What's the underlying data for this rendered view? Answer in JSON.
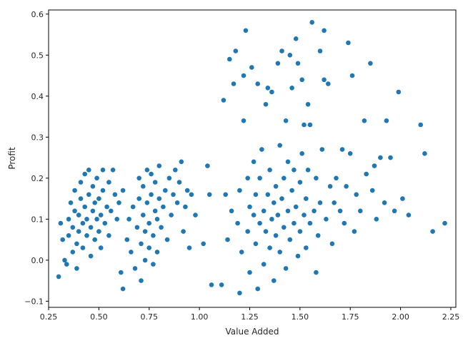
{
  "colors": {
    "marker": "#1f77b4",
    "axis": "#000000",
    "text": "#262626",
    "background": "#ffffff"
  },
  "chart_data": {
    "type": "scatter",
    "xlabel": "Value Added",
    "ylabel": "Profit",
    "xlim": [
      0.25,
      2.275
    ],
    "ylim": [
      -0.115,
      0.61
    ],
    "xticks": [
      0.25,
      0.5,
      0.75,
      1.0,
      1.25,
      1.5,
      1.75,
      2.0,
      2.25
    ],
    "xtick_labels": [
      "0.25",
      "0.50",
      "0.75",
      "1.00",
      "1.25",
      "1.50",
      "1.75",
      "2.00",
      "2.25"
    ],
    "yticks": [
      -0.1,
      0.0,
      0.1,
      0.2,
      0.3,
      0.4,
      0.5,
      0.6
    ],
    "ytick_labels": [
      "−0.1",
      "0.0",
      "0.1",
      "0.2",
      "0.3",
      "0.4",
      "0.5",
      "0.6"
    ],
    "grid": false,
    "points": [
      [
        0.3,
        -0.04
      ],
      [
        0.31,
        0.09
      ],
      [
        0.32,
        0.05
      ],
      [
        0.33,
        0.0
      ],
      [
        0.34,
        -0.01
      ],
      [
        0.35,
        0.06
      ],
      [
        0.35,
        0.1
      ],
      [
        0.36,
        0.14
      ],
      [
        0.37,
        0.02
      ],
      [
        0.37,
        0.08
      ],
      [
        0.38,
        0.12
      ],
      [
        0.38,
        0.17
      ],
      [
        0.39,
        -0.02
      ],
      [
        0.39,
        0.04
      ],
      [
        0.4,
        0.11
      ],
      [
        0.4,
        0.07
      ],
      [
        0.41,
        0.15
      ],
      [
        0.41,
        0.19
      ],
      [
        0.42,
        0.03
      ],
      [
        0.42,
        0.09
      ],
      [
        0.43,
        0.13
      ],
      [
        0.43,
        0.21
      ],
      [
        0.44,
        0.06
      ],
      [
        0.44,
        0.1
      ],
      [
        0.45,
        0.16
      ],
      [
        0.45,
        0.22
      ],
      [
        0.46,
        0.01
      ],
      [
        0.46,
        0.08
      ],
      [
        0.47,
        0.12
      ],
      [
        0.47,
        0.18
      ],
      [
        0.48,
        0.05
      ],
      [
        0.48,
        0.14
      ],
      [
        0.49,
        0.1
      ],
      [
        0.49,
        0.2
      ],
      [
        0.5,
        0.07
      ],
      [
        0.5,
        0.15
      ],
      [
        0.51,
        0.03
      ],
      [
        0.51,
        0.11
      ],
      [
        0.52,
        0.17
      ],
      [
        0.52,
        0.22
      ],
      [
        0.53,
        0.09
      ],
      [
        0.54,
        0.13
      ],
      [
        0.55,
        0.06
      ],
      [
        0.55,
        0.19
      ],
      [
        0.56,
        0.12
      ],
      [
        0.57,
        0.22
      ],
      [
        0.58,
        0.16
      ],
      [
        0.59,
        0.1
      ],
      [
        0.6,
        0.14
      ],
      [
        0.61,
        -0.03
      ],
      [
        0.62,
        0.17
      ],
      [
        0.62,
        -0.07
      ],
      [
        0.64,
        0.05
      ],
      [
        0.65,
        0.1
      ],
      [
        0.66,
        0.02
      ],
      [
        0.67,
        0.13
      ],
      [
        0.68,
        -0.02
      ],
      [
        0.69,
        0.08
      ],
      [
        0.7,
        0.15
      ],
      [
        0.7,
        0.2
      ],
      [
        0.71,
        0.04
      ],
      [
        0.71,
        -0.05
      ],
      [
        0.72,
        0.11
      ],
      [
        0.72,
        0.18
      ],
      [
        0.73,
        0.0
      ],
      [
        0.73,
        0.07
      ],
      [
        0.74,
        0.14
      ],
      [
        0.74,
        0.22
      ],
      [
        0.75,
        0.03
      ],
      [
        0.75,
        0.09
      ],
      [
        0.76,
        0.16
      ],
      [
        0.76,
        0.21
      ],
      [
        0.77,
        -0.01
      ],
      [
        0.77,
        0.06
      ],
      [
        0.78,
        0.12
      ],
      [
        0.78,
        0.19
      ],
      [
        0.79,
        0.02
      ],
      [
        0.79,
        0.1
      ],
      [
        0.8,
        0.15
      ],
      [
        0.8,
        0.23
      ],
      [
        0.81,
        0.08
      ],
      [
        0.82,
        0.13
      ],
      [
        0.83,
        0.17
      ],
      [
        0.84,
        0.05
      ],
      [
        0.85,
        0.2
      ],
      [
        0.86,
        0.11
      ],
      [
        0.87,
        0.16
      ],
      [
        0.88,
        0.22
      ],
      [
        0.89,
        0.14
      ],
      [
        0.9,
        0.19
      ],
      [
        0.91,
        0.24
      ],
      [
        0.92,
        0.07
      ],
      [
        0.93,
        0.13
      ],
      [
        0.94,
        0.17
      ],
      [
        0.95,
        0.03
      ],
      [
        0.96,
        0.16
      ],
      [
        0.98,
        0.11
      ],
      [
        1.02,
        0.04
      ],
      [
        1.04,
        0.23
      ],
      [
        1.05,
        0.16
      ],
      [
        1.06,
        -0.06
      ],
      [
        1.11,
        -0.06
      ],
      [
        1.12,
        0.39
      ],
      [
        1.13,
        0.16
      ],
      [
        1.14,
        0.05
      ],
      [
        1.15,
        0.49
      ],
      [
        1.16,
        0.12
      ],
      [
        1.17,
        0.43
      ],
      [
        1.18,
        0.51
      ],
      [
        1.19,
        0.09
      ],
      [
        1.2,
        0.17
      ],
      [
        1.2,
        -0.08
      ],
      [
        1.21,
        0.02
      ],
      [
        1.22,
        0.34
      ],
      [
        1.22,
        0.45
      ],
      [
        1.23,
        0.56
      ],
      [
        1.24,
        0.07
      ],
      [
        1.24,
        0.2
      ],
      [
        1.25,
        0.13
      ],
      [
        1.25,
        -0.03
      ],
      [
        1.26,
        0.47
      ],
      [
        1.27,
        0.11
      ],
      [
        1.27,
        0.24
      ],
      [
        1.28,
        0.04
      ],
      [
        1.28,
        0.16
      ],
      [
        1.29,
        0.43
      ],
      [
        1.29,
        -0.07
      ],
      [
        1.3,
        0.09
      ],
      [
        1.3,
        0.2
      ],
      [
        1.31,
        0.27
      ],
      [
        1.32,
        0.12
      ],
      [
        1.32,
        -0.01
      ],
      [
        1.33,
        0.38
      ],
      [
        1.33,
        0.07
      ],
      [
        1.34,
        0.16
      ],
      [
        1.34,
        0.42
      ],
      [
        1.35,
        0.03
      ],
      [
        1.35,
        0.22
      ],
      [
        1.36,
        0.1
      ],
      [
        1.36,
        0.41
      ],
      [
        1.37,
        0.14
      ],
      [
        1.37,
        -0.05
      ],
      [
        1.38,
        0.18
      ],
      [
        1.38,
        0.06
      ],
      [
        1.39,
        0.48
      ],
      [
        1.39,
        0.11
      ],
      [
        1.4,
        0.28
      ],
      [
        1.4,
        0.02
      ],
      [
        1.41,
        0.15
      ],
      [
        1.41,
        0.51
      ],
      [
        1.42,
        0.08
      ],
      [
        1.42,
        0.2
      ],
      [
        1.43,
        0.34
      ],
      [
        1.43,
        -0.02
      ],
      [
        1.44,
        0.12
      ],
      [
        1.44,
        0.24
      ],
      [
        1.45,
        0.05
      ],
      [
        1.45,
        0.5
      ],
      [
        1.46,
        0.17
      ],
      [
        1.46,
        0.42
      ],
      [
        1.47,
        0.09
      ],
      [
        1.47,
        0.22
      ],
      [
        1.48,
        0.54
      ],
      [
        1.48,
        0.13
      ],
      [
        1.49,
        0.01
      ],
      [
        1.49,
        0.48
      ],
      [
        1.5,
        0.19
      ],
      [
        1.5,
        0.07
      ],
      [
        1.51,
        0.44
      ],
      [
        1.51,
        0.26
      ],
      [
        1.52,
        0.11
      ],
      [
        1.52,
        0.33
      ],
      [
        1.53,
        0.15
      ],
      [
        1.53,
        0.03
      ],
      [
        1.54,
        0.38
      ],
      [
        1.54,
        0.22
      ],
      [
        1.55,
        0.09
      ],
      [
        1.55,
        0.33
      ],
      [
        1.56,
        0.58
      ],
      [
        1.57,
        0.12
      ],
      [
        1.58,
        0.2
      ],
      [
        1.58,
        -0.03
      ],
      [
        1.59,
        0.06
      ],
      [
        1.6,
        0.51
      ],
      [
        1.6,
        0.14
      ],
      [
        1.61,
        0.27
      ],
      [
        1.62,
        0.56
      ],
      [
        1.62,
        0.44
      ],
      [
        1.63,
        0.1
      ],
      [
        1.64,
        0.43
      ],
      [
        1.65,
        0.18
      ],
      [
        1.66,
        0.04
      ],
      [
        1.67,
        0.14
      ],
      [
        1.68,
        0.2
      ],
      [
        1.7,
        0.12
      ],
      [
        1.71,
        0.27
      ],
      [
        1.72,
        0.09
      ],
      [
        1.73,
        0.18
      ],
      [
        1.74,
        0.53
      ],
      [
        1.75,
        0.26
      ],
      [
        1.76,
        0.45
      ],
      [
        1.77,
        0.07
      ],
      [
        1.78,
        0.16
      ],
      [
        1.8,
        0.12
      ],
      [
        1.82,
        0.34
      ],
      [
        1.83,
        0.21
      ],
      [
        1.85,
        0.48
      ],
      [
        1.86,
        0.17
      ],
      [
        1.87,
        0.23
      ],
      [
        1.88,
        0.1
      ],
      [
        1.9,
        0.25
      ],
      [
        1.92,
        0.14
      ],
      [
        1.93,
        0.34
      ],
      [
        1.95,
        0.25
      ],
      [
        1.97,
        0.12
      ],
      [
        1.99,
        0.41
      ],
      [
        2.01,
        0.15
      ],
      [
        2.04,
        0.11
      ],
      [
        2.1,
        0.33
      ],
      [
        2.12,
        0.26
      ],
      [
        2.16,
        0.07
      ],
      [
        2.22,
        0.09
      ]
    ]
  }
}
